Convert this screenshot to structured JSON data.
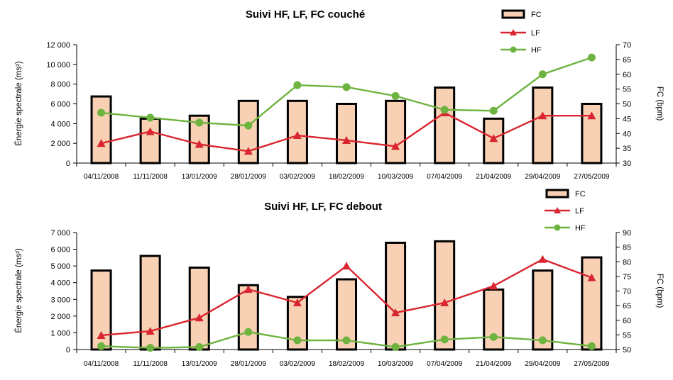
{
  "chart_data": [
    {
      "type": "bar",
      "title": "Suivi HF, LF, FC couché",
      "categories": [
        "04/11/2008",
        "11/11/2008",
        "13/01/2009",
        "28/01/2009",
        "03/02/2009",
        "18/02/2009",
        "10/03/2009",
        "07/04/2009",
        "21/04/2009",
        "29/04/2009",
        "27/05/2009"
      ],
      "ylabel": "Énergie spectrale (ms²)",
      "ylabel_right": "FC (bpm)",
      "ylim": [
        0,
        12000
      ],
      "yticks": [
        "0",
        "2 000",
        "4 000",
        "6 000",
        "8 000",
        "10 000",
        "12 000"
      ],
      "ylim_right": [
        30,
        70
      ],
      "yticks_right": [
        "30",
        "35",
        "40",
        "45",
        "50",
        "55",
        "60",
        "65",
        "70"
      ],
      "legend_position": "top-right",
      "series": [
        {
          "name": "FC",
          "kind": "bar",
          "axis": "right",
          "values": [
            52.5,
            45.0,
            46.0,
            51.0,
            51.0,
            50.0,
            51.0,
            55.5,
            45.0,
            55.5,
            50.0
          ],
          "color": "#f8d0b4"
        },
        {
          "name": "LF",
          "kind": "line",
          "axis": "left",
          "marker": "triangle",
          "values": [
            2000,
            3200,
            1900,
            1200,
            2800,
            2300,
            1700,
            5100,
            2500,
            4800,
            4800
          ],
          "color": "#d9252f"
        },
        {
          "name": "HF",
          "kind": "line",
          "axis": "left",
          "marker": "circle",
          "values": [
            5100,
            4600,
            4100,
            3800,
            7900,
            7700,
            6800,
            5400,
            5300,
            9000,
            10700
          ],
          "color": "#6db33f"
        }
      ]
    },
    {
      "type": "bar",
      "title": "Suivi  HF, LF, FC debout",
      "categories": [
        "04/11/2008",
        "11/11/2008",
        "13/01/2009",
        "28/01/2009",
        "03/02/2009",
        "18/02/2009",
        "10/03/2009",
        "07/04/2009",
        "21/04/2009",
        "29/04/2009",
        "27/05/2009"
      ],
      "ylabel": "Énergie spectrale (ms²)",
      "ylabel_right": "FC (bpm)",
      "ylim": [
        0,
        7000
      ],
      "yticks": [
        "0",
        "1 000",
        "2 000",
        "3 000",
        "4 000",
        "5 000",
        "6 000",
        "7 000"
      ],
      "ylim_right": [
        50,
        90
      ],
      "yticks_right": [
        "50",
        "55",
        "60",
        "65",
        "70",
        "75",
        "80",
        "85",
        "90"
      ],
      "legend_position": "top-right",
      "series": [
        {
          "name": "FC",
          "kind": "bar",
          "axis": "right",
          "values": [
            77.0,
            82.0,
            78.0,
            72.0,
            68.0,
            74.0,
            86.5,
            87.0,
            70.5,
            77.0,
            81.5
          ],
          "color": "#f8d0b4"
        },
        {
          "name": "LF",
          "kind": "line",
          "axis": "left",
          "marker": "triangle",
          "values": [
            850,
            1100,
            1900,
            3600,
            2800,
            5000,
            2200,
            2800,
            3800,
            5400,
            4300
          ],
          "color": "#d9252f"
        },
        {
          "name": "HF",
          "kind": "line",
          "axis": "left",
          "marker": "circle",
          "values": [
            200,
            100,
            150,
            1050,
            550,
            550,
            150,
            600,
            750,
            550,
            200
          ],
          "color": "#6db33f"
        }
      ]
    }
  ]
}
